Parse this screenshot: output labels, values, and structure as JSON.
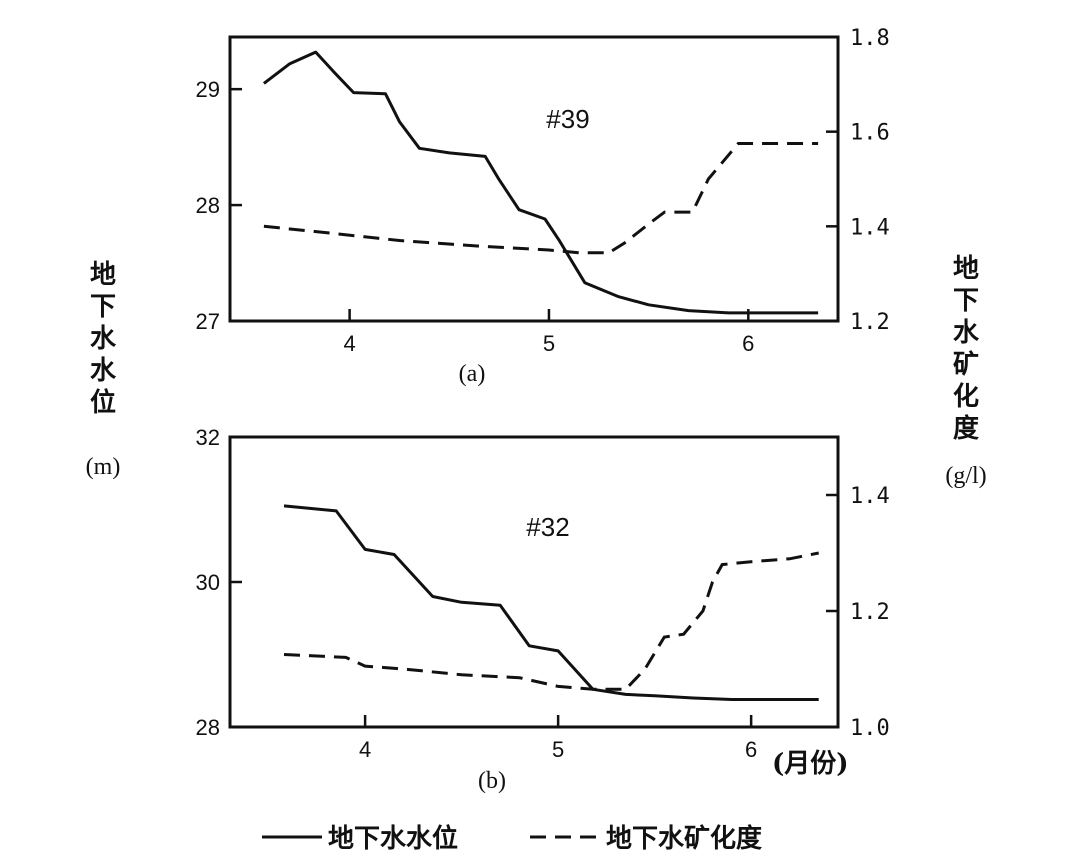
{
  "chart_data": [
    {
      "type": "line",
      "panel_label": "(a)",
      "annotation": "#39",
      "x_ticks": [
        "4",
        "5",
        "6"
      ],
      "xlim": [
        3.4,
        6.45
      ],
      "left_axis": {
        "ticks": [
          "27",
          "28",
          "29"
        ],
        "ylim": [
          27,
          29.45
        ]
      },
      "right_axis": {
        "ticks": [
          "1.2",
          "1.4",
          "1.6",
          "1.8"
        ],
        "ylim": [
          1.2,
          1.8
        ]
      },
      "series": [
        {
          "name": "地下水水位",
          "axis": "left",
          "style": "solid",
          "x": [
            3.57,
            3.7,
            3.83,
            3.92,
            4.02,
            4.18,
            4.25,
            4.35,
            4.5,
            4.68,
            4.75,
            4.85,
            4.98,
            5.05,
            5.18,
            5.35,
            5.5,
            5.7,
            5.9,
            6.1,
            6.35
          ],
          "y": [
            29.05,
            29.22,
            29.32,
            29.15,
            28.97,
            28.96,
            28.72,
            28.49,
            28.45,
            28.42,
            28.22,
            27.96,
            27.88,
            27.7,
            27.33,
            27.21,
            27.14,
            27.09,
            27.07,
            27.07,
            27.07
          ]
        },
        {
          "name": "地下水矿化度",
          "axis": "right",
          "style": "dashed",
          "x": [
            3.57,
            3.85,
            4.25,
            4.65,
            5.0,
            5.15,
            5.3,
            5.38,
            5.5,
            5.58,
            5.65,
            5.72,
            5.8,
            5.95,
            6.15,
            6.35
          ],
          "y": [
            1.4,
            1.388,
            1.37,
            1.358,
            1.35,
            1.344,
            1.344,
            1.365,
            1.405,
            1.43,
            1.43,
            1.43,
            1.5,
            1.575,
            1.575,
            1.575
          ]
        }
      ]
    },
    {
      "type": "line",
      "panel_label": "(b)",
      "annotation": "#32",
      "x_ticks": [
        "4",
        "5",
        "6"
      ],
      "x_unit": "(月份)",
      "xlim": [
        3.3,
        6.45
      ],
      "left_axis": {
        "ticks": [
          "28",
          "30",
          "32"
        ],
        "ylim": [
          28,
          32
        ]
      },
      "right_axis": {
        "ticks": [
          "1.0",
          "1.2",
          "1.4"
        ],
        "ylim": [
          1.0,
          1.5
        ]
      },
      "series": [
        {
          "name": "地下水水位",
          "axis": "left",
          "style": "solid",
          "x": [
            3.58,
            3.85,
            4.0,
            4.15,
            4.35,
            4.5,
            4.7,
            4.85,
            5.0,
            5.18,
            5.35,
            5.5,
            5.7,
            5.9,
            6.1,
            6.35
          ],
          "y": [
            31.05,
            30.98,
            30.45,
            30.38,
            29.8,
            29.72,
            29.68,
            29.12,
            29.05,
            28.52,
            28.45,
            28.43,
            28.4,
            28.38,
            28.38,
            28.38
          ]
        },
        {
          "name": "地下水矿化度",
          "axis": "right",
          "style": "dashed",
          "x": [
            3.58,
            3.9,
            4.0,
            4.2,
            4.5,
            4.8,
            5.0,
            5.18,
            5.35,
            5.45,
            5.55,
            5.65,
            5.75,
            5.8,
            5.85,
            6.0,
            6.2,
            6.35
          ],
          "y": [
            1.125,
            1.12,
            1.105,
            1.1,
            1.09,
            1.085,
            1.07,
            1.065,
            1.065,
            1.1,
            1.155,
            1.16,
            1.2,
            1.25,
            1.28,
            1.285,
            1.29,
            1.3
          ]
        }
      ]
    }
  ],
  "left_axis_title": "地下水水位",
  "left_axis_unit": "(m)",
  "right_axis_title": "地下水矿化度",
  "right_axis_unit": "(g/l)",
  "legend": [
    {
      "label": "地下水水位",
      "style": "solid"
    },
    {
      "label": "地下水矿化度",
      "style": "dashed"
    }
  ]
}
